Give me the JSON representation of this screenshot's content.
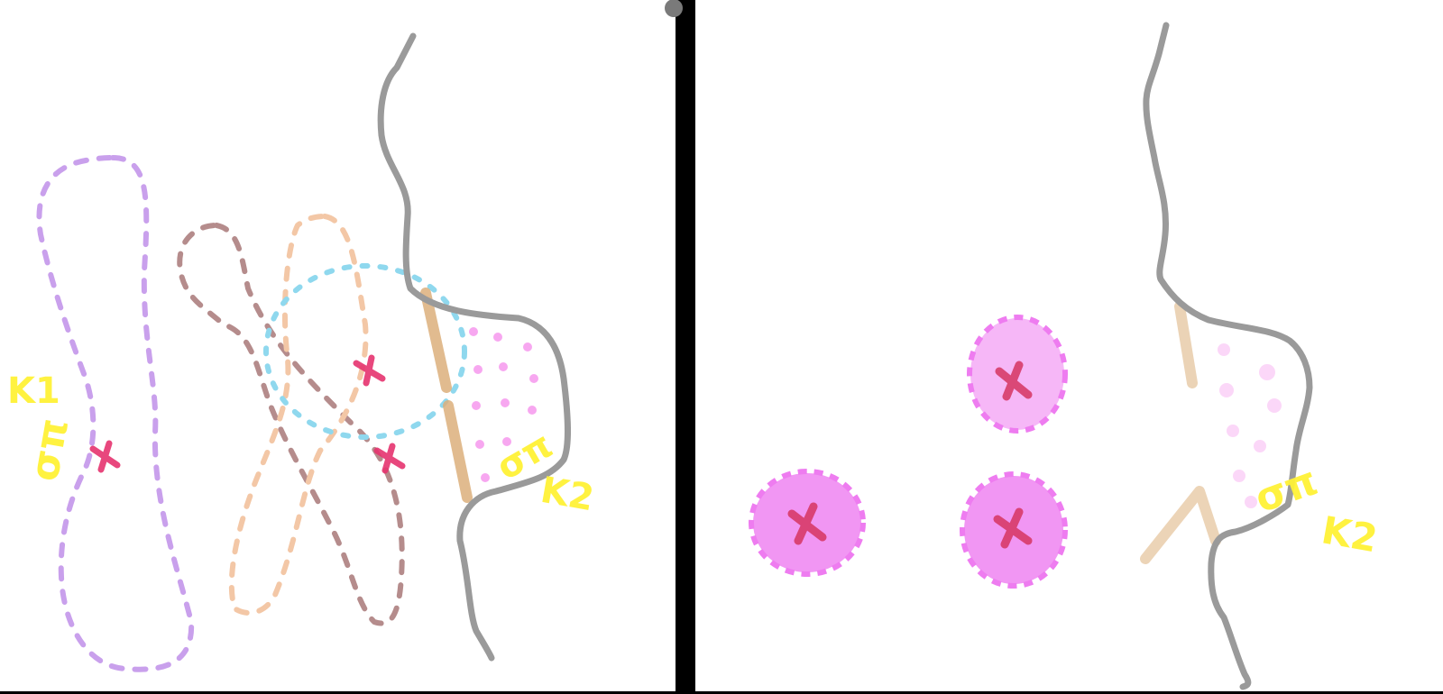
{
  "left_panel": {
    "labels": {
      "k1": "K1",
      "k2": "K2",
      "sigma_left": "σπ",
      "sigma_right": "σπ"
    }
  },
  "right_panel": {
    "labels": {
      "k2": "K2",
      "sigma": "σπ"
    }
  },
  "colors": {
    "background": "#ffffff",
    "divider": "#000000",
    "molecule_outline": "#9a9a9a",
    "purple_lobe": "#c9a0ec",
    "brown_lobe": "#b58c8c",
    "orange_lobe": "#f3c7a6",
    "blue_lobe": "#8fd8ee",
    "pink_dots": "#f7a7f0",
    "tan_band": "#dcb07c",
    "magenta_fill": "#ee7cf0",
    "cross": "#e6346f",
    "yellow_label": "#fff236"
  }
}
